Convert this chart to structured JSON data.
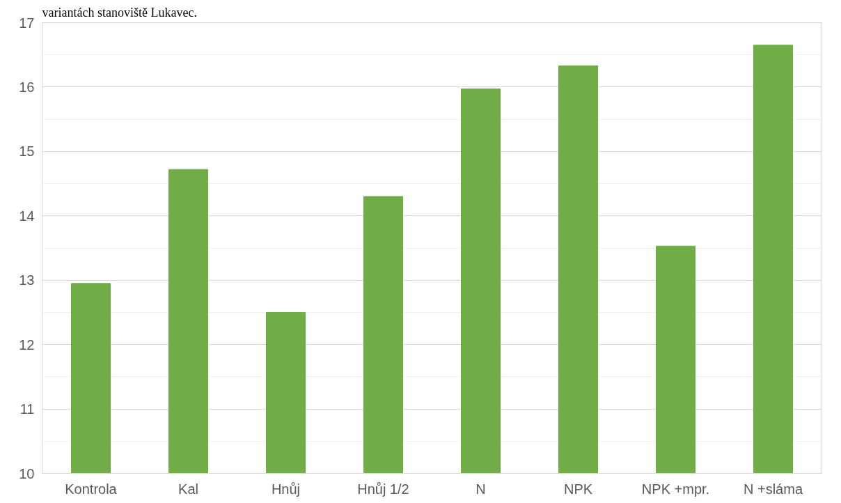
{
  "chart_data": {
    "type": "bar",
    "title": "variantách stanoviště Lukavec.",
    "categories": [
      "Kontrola",
      "Kal",
      "Hnůj",
      "Hnůj 1/2",
      "N",
      "NPK",
      "NPK +mpr.",
      "N +sláma"
    ],
    "values": [
      12.95,
      14.72,
      12.5,
      14.3,
      15.97,
      16.33,
      13.53,
      16.65
    ],
    "color": "#70ad47",
    "ylim": [
      10,
      17
    ],
    "yticks": [
      10,
      {
        "value": 10.5,
        "label": null
      },
      11,
      {
        "value": 11.5,
        "label": null
      },
      12,
      {
        "value": 12.5,
        "label": null
      },
      13,
      {
        "value": 13.5,
        "label": null
      },
      14,
      {
        "value": 14.5,
        "label": null
      },
      15,
      {
        "value": 15.5,
        "label": null
      },
      16,
      {
        "value": 16.5,
        "label": null
      },
      17
    ],
    "grid": "y"
  }
}
